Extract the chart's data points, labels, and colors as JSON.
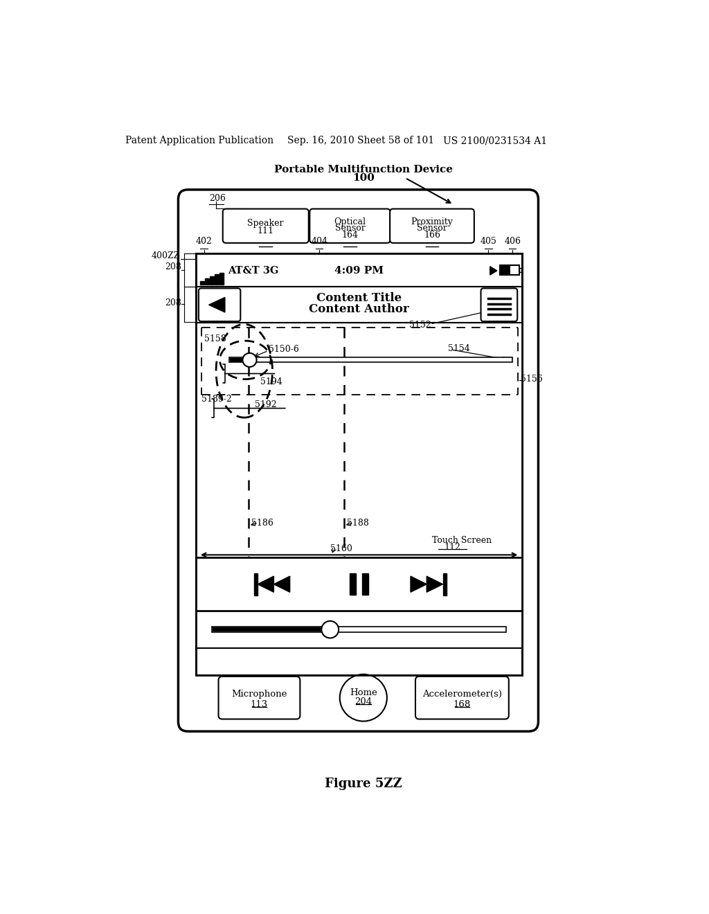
{
  "bg_color": "#ffffff",
  "header_text": "Patent Application Publication",
  "header_date": "Sep. 16, 2010",
  "header_sheet": "Sheet 58 of 101",
  "header_patent": "US 2100/0231534 A1",
  "device_label": "Portable Multifunction Device",
  "device_number": "100",
  "figure_label": "Figure 5ZZ",
  "status_carrier": "AT&T 3G",
  "status_time": "4:09 PM",
  "nav_title": "Content Title",
  "nav_author": "Content Author",
  "ref_206": "206",
  "ref_208a": "208",
  "ref_208b": "208",
  "ref_400ZZ": "400ZZ",
  "ref_402": "402",
  "ref_404": "404",
  "ref_405": "405",
  "ref_406": "406",
  "ref_5152": "5152",
  "ref_5154": "5154",
  "ref_5156": "5156",
  "ref_5158": "5158",
  "ref_5150_6": "5150-6",
  "ref_5186": "5186",
  "ref_5188": "5188",
  "ref_5194": "5194",
  "ref_5189_2": "5189-2",
  "ref_5192": "5192",
  "ref_5160": "5160",
  "ref_touchscreen": "Touch Screen",
  "ref_112": "112",
  "ref_mic": "Microphone",
  "ref_113": "113",
  "ref_home": "Home",
  "ref_204": "204",
  "ref_accel": "Accelerometer(s)",
  "ref_168": "168",
  "ref_speaker": "Speaker",
  "ref_111": "111",
  "ref_optical": "Optical\nSensor",
  "ref_164": "164",
  "ref_proximity": "Proximity\nSensor",
  "ref_166": "166"
}
